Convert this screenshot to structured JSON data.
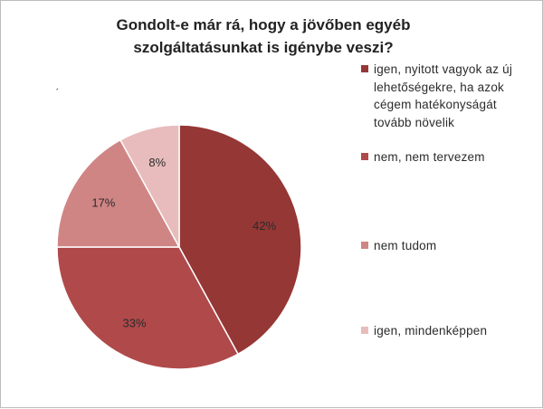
{
  "chart_data": {
    "type": "pie",
    "title": "Gondolt-e már rá, hogy a jövőben egyéb szolgáltatásunkat is igénybe veszi?",
    "categories": [
      "igen, nyitott vagyok az új lehetőségekre, ha azok cégem hatékonyságát tovább növelik",
      "nem, nem tervezem",
      "nem tudom",
      "igen, mindenképpen"
    ],
    "values": [
      42,
      33,
      17,
      8
    ],
    "data_labels": [
      "42%",
      "33%",
      "17%",
      "8%"
    ],
    "colors": [
      "#953735",
      "#b0494a",
      "#d08585",
      "#e8bcbc"
    ],
    "legend_position": "right",
    "grid": false
  },
  "stray_mark": "ˏ"
}
